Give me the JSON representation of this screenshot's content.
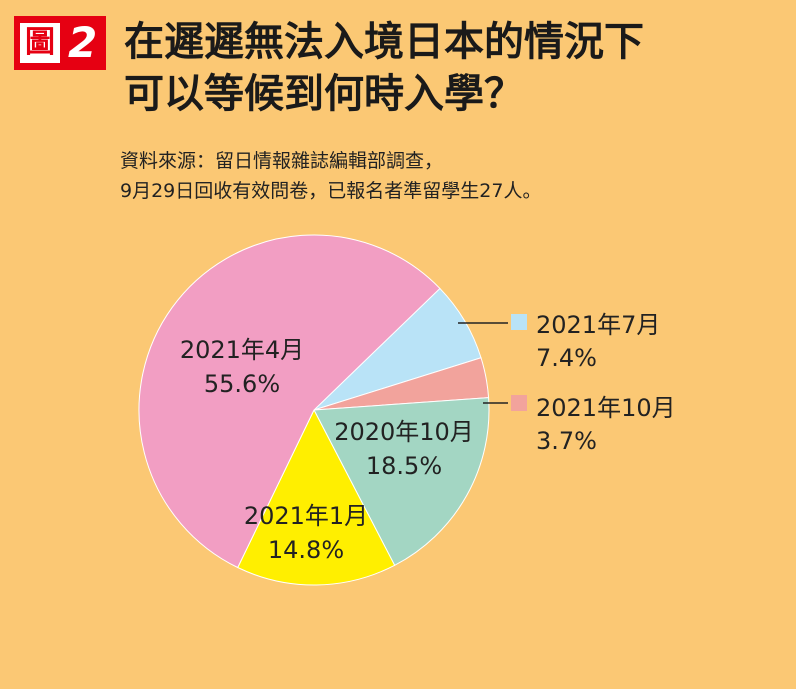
{
  "header": {
    "badge_glyph": "圖",
    "badge_number": "2",
    "title_line1": "在遲遲無法入境日本的情況下",
    "title_line2": "可以等候到何時入學？"
  },
  "source": {
    "line1": "資料來源：留日情報雜誌編輯部調查，",
    "line2": "9月29日回收有效問卷，已報名者準留學生27人。"
  },
  "chart_data": {
    "type": "pie",
    "unit": "%",
    "slices": [
      {
        "label": "2021年7月",
        "value": 7.4,
        "value_text": "7.4%",
        "color": "#B9E3F7"
      },
      {
        "label": "2021年10月",
        "value": 3.7,
        "value_text": "3.7%",
        "color": "#F2A39C"
      },
      {
        "label": "2020年10月",
        "value": 18.5,
        "value_text": "18.5%",
        "color": "#A3D6C3"
      },
      {
        "label": "2021年1月",
        "value": 14.8,
        "value_text": "14.8%",
        "color": "#FFEF00"
      },
      {
        "label": "2021年4月",
        "value": 55.6,
        "value_text": "55.6%",
        "color": "#F29EC3"
      }
    ]
  }
}
